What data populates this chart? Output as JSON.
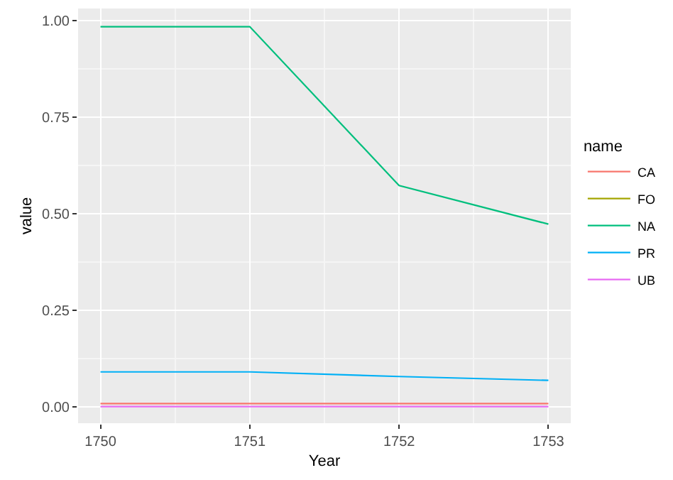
{
  "chart_data": {
    "type": "line",
    "xlabel": "Year",
    "ylabel": "value",
    "legend_title": "name",
    "x": [
      1750,
      1751,
      1752,
      1753
    ],
    "xlim": [
      1749.85,
      1753.15
    ],
    "xticks": [
      1750,
      1751,
      1752,
      1753
    ],
    "ylim": [
      -0.043,
      1.032
    ],
    "yticks": [
      {
        "value": 0,
        "label": "0.00"
      },
      {
        "value": 0.25,
        "label": "0.25"
      },
      {
        "value": 0.5,
        "label": "0.50"
      },
      {
        "value": 0.75,
        "label": "0.75"
      },
      {
        "value": 1,
        "label": "1.00"
      }
    ],
    "series": [
      {
        "name": "CA",
        "color": "#f8766d",
        "values": [
          0.008,
          0.008,
          0.008,
          0.008
        ]
      },
      {
        "name": "FO",
        "color": "#a3a500",
        "values": [
          null,
          null,
          null,
          null
        ]
      },
      {
        "name": "NA",
        "color": "#00bf7d",
        "values": [
          0.985,
          0.985,
          0.573,
          0.473
        ]
      },
      {
        "name": "PR",
        "color": "#00b0f6",
        "values": [
          0.09,
          0.09,
          0.078,
          0.068
        ]
      },
      {
        "name": "UB",
        "color": "#e76bf3",
        "values": [
          0,
          0,
          0,
          0
        ]
      }
    ],
    "grid": true,
    "legend": "right"
  }
}
